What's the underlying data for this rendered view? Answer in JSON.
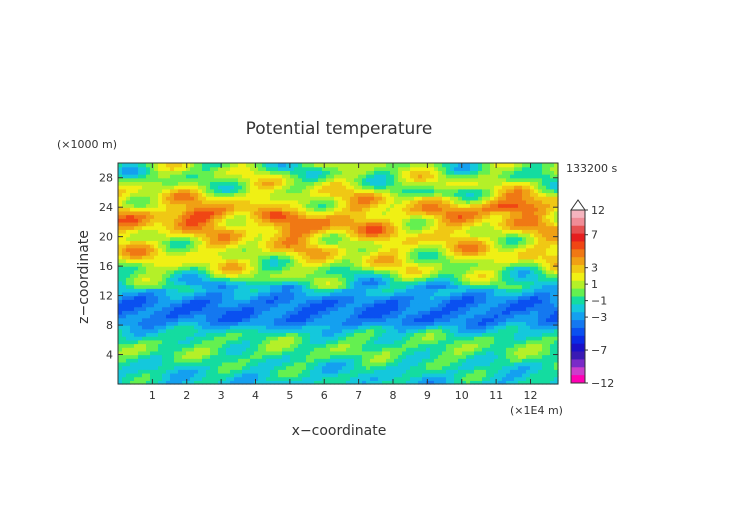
{
  "chart_data": {
    "type": "heatmap",
    "title": "Potential temperature",
    "xlabel": "x−coordinate",
    "ylabel": "z−coordinate",
    "x_unit": "(×1E4 m)",
    "y_unit": "(×1000 m)",
    "time_label": "133200 s",
    "xlim": [
      0,
      12.8
    ],
    "ylim": [
      0,
      30
    ],
    "x_ticks": [
      "1",
      "2",
      "3",
      "4",
      "5",
      "6",
      "7",
      "8",
      "9",
      "10",
      "11",
      "12"
    ],
    "y_ticks": [
      "4",
      "8",
      "12",
      "16",
      "20",
      "24",
      "28"
    ],
    "colorbar": {
      "levels": [
        -12,
        -10,
        -9,
        -8,
        -7,
        -6,
        -5,
        -4,
        -3,
        -2,
        -1,
        0,
        1,
        2,
        3,
        4,
        5,
        6,
        7,
        8,
        10,
        12
      ],
      "tick_labels": [
        "12",
        "7",
        "3",
        "1",
        "−1",
        "−3",
        "−7",
        "−12"
      ],
      "tick_values": [
        12,
        7,
        3,
        1,
        -1,
        -3,
        -7,
        -12
      ],
      "colors": [
        "#ff00b4",
        "#cc3ccc",
        "#7a2ac8",
        "#3a1ab4",
        "#1a10c8",
        "#0a2ae6",
        "#0a50f0",
        "#1478f0",
        "#14a0f0",
        "#14c8dc",
        "#14dca0",
        "#64f050",
        "#b4f028",
        "#f0f014",
        "#f0c814",
        "#f0a014",
        "#f07814",
        "#f04614",
        "#e61e1e",
        "#e65050",
        "#f08c96",
        "#f5b4be"
      ]
    },
    "z_rows_description_free": true,
    "field": {
      "z": [
        0.5,
        1.5,
        2.5,
        3.5,
        4.5,
        5.5,
        6.5,
        7.5,
        8.5,
        9.5,
        10.5,
        11.5,
        12.5,
        13.5,
        14.5,
        15.5,
        16.5,
        17.5,
        18.5,
        19.5,
        20.5,
        21.5,
        22.5,
        23.5,
        24.5,
        25.5,
        26.5,
        27.5,
        28.5,
        29.5
      ],
      "base": [
        -1.3,
        -1.0,
        -0.8,
        -0.3,
        0.3,
        0.0,
        -0.3,
        -1.5,
        -3.3,
        -3.6,
        -3.6,
        -3.3,
        -2.0,
        -1.2,
        0.3,
        1.2,
        1.8,
        2.3,
        2.6,
        2.4,
        2.8,
        3.2,
        3.4,
        3.6,
        2.8,
        2.6,
        1.6,
        1.3,
        0.8,
        0.6
      ]
    }
  }
}
